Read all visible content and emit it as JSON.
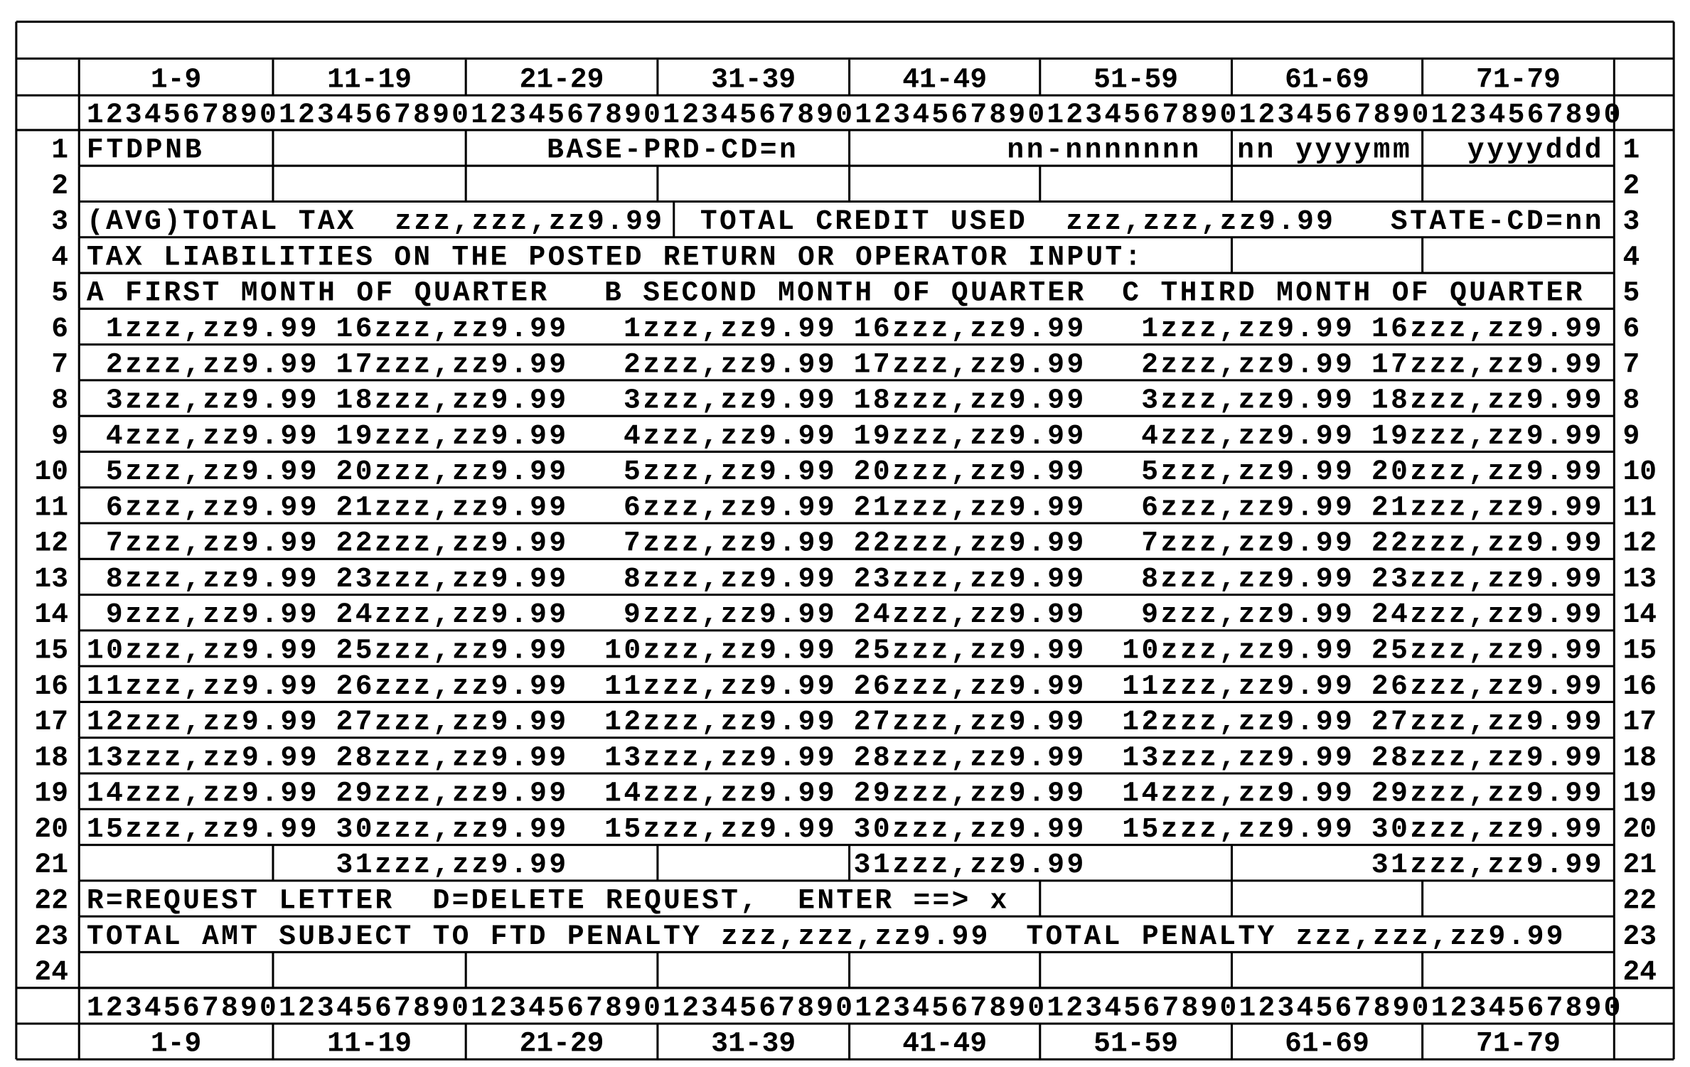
{
  "ruler": {
    "ranges": [
      "1-9",
      "11-19",
      "21-29",
      "31-39",
      "41-49",
      "51-59",
      "61-69",
      "71-79"
    ],
    "digits": "12345678901234567890123456789012345678901234567890123456789012345678901234567890"
  },
  "rows": [
    {
      "number": "1",
      "cells": [
        "FTDPNB",
        "BASE-PRD-CD=n",
        "nn-nnnnnnn",
        "nn yyyymm",
        "yyyyddd"
      ]
    },
    {
      "number": "2",
      "cells": []
    },
    {
      "number": "3",
      "cells": [
        "(AVG)TOTAL TAX  zzz,zzz,zz9.99",
        "TOTAL CREDIT USED  zzz,zzz,zz9.99",
        "STATE-CD=nn"
      ]
    },
    {
      "number": "4",
      "cells": [
        "TAX LIABILITIES ON THE POSTED RETURN OR OPERATOR INPUT:"
      ]
    },
    {
      "number": "5",
      "cells": [
        "A FIRST MONTH OF QUARTER",
        "B SECOND MONTH OF QUARTER",
        "C THIRD MONTH OF QUARTER"
      ]
    },
    {
      "number": "6",
      "cells": [
        "1zzz,zz9.99",
        "16zzz,zz9.99",
        "1zzz,zz9.99",
        "16zzz,zz9.99",
        "1zzz,zz9.99",
        "16zzz,zz9.99"
      ]
    },
    {
      "number": "7",
      "cells": [
        "2zzz,zz9.99",
        "17zzz,zz9.99",
        "2zzz,zz9.99",
        "17zzz,zz9.99",
        "2zzz,zz9.99",
        "17zzz,zz9.99"
      ]
    },
    {
      "number": "8",
      "cells": [
        "3zzz,zz9.99",
        "18zzz,zz9.99",
        "3zzz,zz9.99",
        "18zzz,zz9.99",
        "3zzz,zz9.99",
        "18zzz,zz9.99"
      ]
    },
    {
      "number": "9",
      "cells": [
        "4zzz,zz9.99",
        "19zzz,zz9.99",
        "4zzz,zz9.99",
        "19zzz,zz9.99",
        "4zzz,zz9.99",
        "19zzz,zz9.99"
      ]
    },
    {
      "number": "10",
      "cells": [
        "5zzz,zz9.99",
        "20zzz,zz9.99",
        "5zzz,zz9.99",
        "20zzz,zz9.99",
        "5zzz,zz9.99",
        "20zzz,zz9.99"
      ]
    },
    {
      "number": "11",
      "cells": [
        "6zzz,zz9.99",
        "21zzz,zz9.99",
        "6zzz,zz9.99",
        "21zzz,zz9.99",
        "6zzz,zz9.99",
        "21zzz,zz9.99"
      ]
    },
    {
      "number": "12",
      "cells": [
        "7zzz,zz9.99",
        "22zzz,zz9.99",
        "7zzz,zz9.99",
        "22zzz,zz9.99",
        "7zzz,zz9.99",
        "22zzz,zz9.99"
      ]
    },
    {
      "number": "13",
      "cells": [
        "8zzz,zz9.99",
        "23zzz,zz9.99",
        "8zzz,zz9.99",
        "23zzz,zz9.99",
        "8zzz,zz9.99",
        "23zzz,zz9.99"
      ]
    },
    {
      "number": "14",
      "cells": [
        "9zzz,zz9.99",
        "24zzz,zz9.99",
        "9zzz,zz9.99",
        "24zzz,zz9.99",
        "9zzz,zz9.99",
        "24zzz,zz9.99"
      ]
    },
    {
      "number": "15",
      "cells": [
        "10zzz,zz9.99",
        "25zzz,zz9.99",
        "10zzz,zz9.99",
        "25zzz,zz9.99",
        "10zzz,zz9.99",
        "25zzz,zz9.99"
      ]
    },
    {
      "number": "16",
      "cells": [
        "11zzz,zz9.99",
        "26zzz,zz9.99",
        "11zzz,zz9.99",
        "26zzz,zz9.99",
        "11zzz,zz9.99",
        "26zzz,zz9.99"
      ]
    },
    {
      "number": "17",
      "cells": [
        "12zzz,zz9.99",
        "27zzz,zz9.99",
        "12zzz,zz9.99",
        "27zzz,zz9.99",
        "12zzz,zz9.99",
        "27zzz,zz9.99"
      ]
    },
    {
      "number": "18",
      "cells": [
        "13zzz,zz9.99",
        "28zzz,zz9.99",
        "13zzz,zz9.99",
        "28zzz,zz9.99",
        "13zzz,zz9.99",
        "28zzz,zz9.99"
      ]
    },
    {
      "number": "19",
      "cells": [
        "14zzz,zz9.99",
        "29zzz,zz9.99",
        "14zzz,zz9.99",
        "29zzz,zz9.99",
        "14zzz,zz9.99",
        "29zzz,zz9.99"
      ]
    },
    {
      "number": "20",
      "cells": [
        "15zzz,zz9.99",
        "30zzz,zz9.99",
        "15zzz,zz9.99",
        "30zzz,zz9.99",
        "15zzz,zz9.99",
        "30zzz,zz9.99"
      ]
    },
    {
      "number": "21",
      "cells": [
        "31zzz,zz9.99",
        "31zzz,zz9.99",
        "31zzz,zz9.99"
      ]
    },
    {
      "number": "22",
      "cells": [
        "R=REQUEST LETTER  D=DELETE REQUEST,  ENTER ==> x"
      ]
    },
    {
      "number": "23",
      "cells": [
        "TOTAL AMT SUBJECT TO FTD PENALTY zzz,zzz,zz9.99",
        "TOTAL PENALTY zzz,zzz,zz9.99"
      ]
    },
    {
      "number": "24",
      "cells": []
    }
  ]
}
